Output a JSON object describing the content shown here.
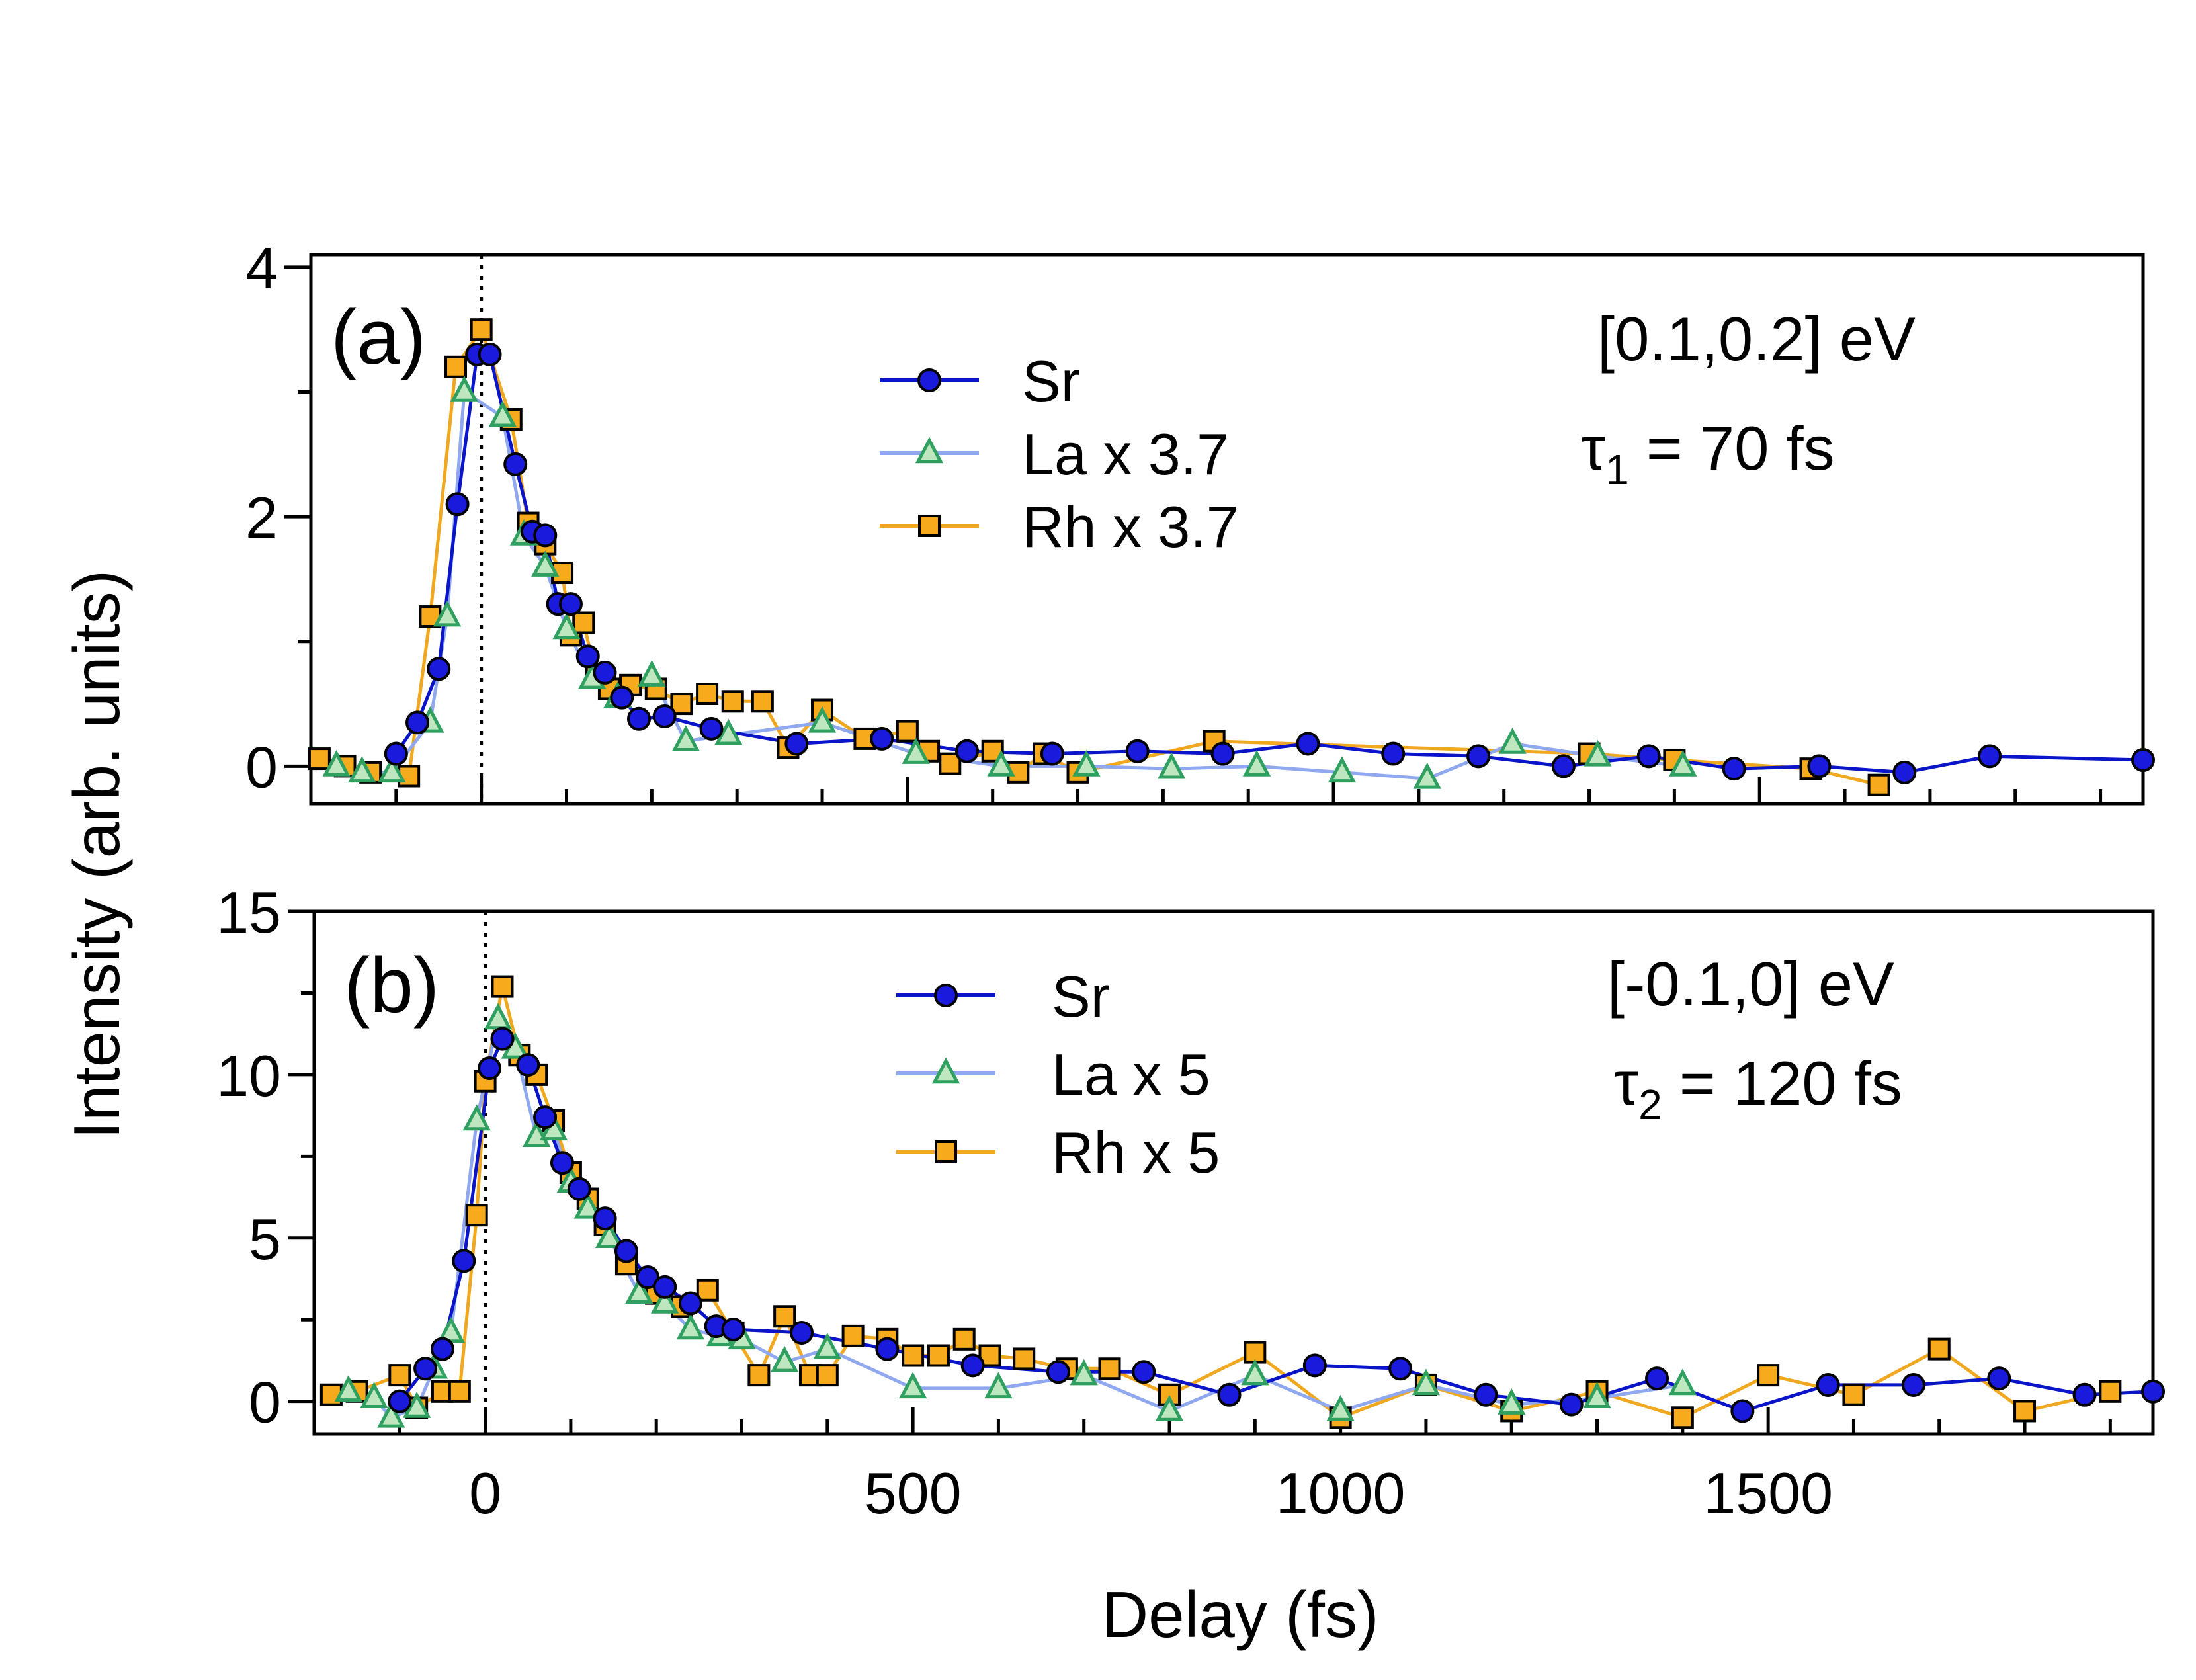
{
  "figure": {
    "ylabel": "Intensity (arb. units)",
    "xlabel": "Delay (fs)"
  },
  "colors": {
    "sr_line": "#0a14c8",
    "sr_marker": "#1a1adc",
    "la_line": "#8fa8f0",
    "la_marker": "#30a060",
    "rh_line": "#f0a820",
    "rh_marker": "#f7ab1c"
  },
  "chart_data": [
    {
      "type": "line",
      "panel_label": "(a)",
      "energy_label": "[0.1,0.2] eV",
      "tau_symbol": "τ",
      "tau_sub": "1",
      "tau_rest": " = 70 fs",
      "xlim": [
        -200,
        1950
      ],
      "ylim": [
        -0.3,
        4.1
      ],
      "yticks": [
        0,
        2,
        4
      ],
      "xticks": [
        0,
        500,
        1000,
        1500
      ],
      "show_xtick_labels": false,
      "legend_position": "top-center",
      "series": [
        {
          "name": "Sr",
          "marker": "circle",
          "x": [
            -100,
            -75,
            -50,
            -28,
            -5,
            10,
            40,
            60,
            75,
            90,
            105,
            125,
            145,
            165,
            185,
            215,
            270,
            370,
            470,
            570,
            670,
            770,
            870,
            970,
            1070,
            1170,
            1270,
            1370,
            1470,
            1570,
            1670,
            1770,
            1950
          ],
          "y": [
            0.1,
            0.35,
            0.78,
            2.1,
            3.3,
            3.3,
            2.42,
            1.88,
            1.85,
            1.3,
            1.3,
            0.88,
            0.75,
            0.55,
            0.38,
            0.4,
            0.3,
            0.18,
            0.22,
            0.12,
            0.1,
            0.12,
            0.1,
            0.18,
            0.1,
            0.08,
            0.0,
            0.08,
            -0.02,
            0.0,
            -0.05,
            0.08,
            0.05
          ]
        },
        {
          "name": "La x 3.7",
          "marker": "triangle",
          "x": [
            -170,
            -140,
            -105,
            -60,
            -40,
            -20,
            25,
            50,
            75,
            100,
            130,
            160,
            200,
            240,
            290,
            400,
            510,
            610,
            710,
            810,
            910,
            1010,
            1110,
            1210,
            1310,
            1410
          ],
          "y": [
            0.0,
            -0.05,
            -0.05,
            0.35,
            1.2,
            3.0,
            2.8,
            1.85,
            1.6,
            1.1,
            0.7,
            0.55,
            0.72,
            0.2,
            0.25,
            0.35,
            0.1,
            0.0,
            0.0,
            -0.02,
            0.0,
            -0.05,
            -0.1,
            0.18,
            0.08,
            0.0
          ]
        },
        {
          "name": "Rh x 3.7",
          "marker": "square",
          "x": [
            -190,
            -160,
            -130,
            -85,
            -60,
            -30,
            0,
            35,
            55,
            75,
            95,
            105,
            120,
            135,
            150,
            175,
            205,
            235,
            265,
            295,
            330,
            360,
            400,
            450,
            500,
            525,
            550,
            600,
            630,
            660,
            700,
            860,
            1300,
            1400,
            1560,
            1640
          ],
          "y": [
            0.06,
            0.0,
            -0.05,
            -0.08,
            1.2,
            3.2,
            3.5,
            2.78,
            1.95,
            1.78,
            1.55,
            1.05,
            1.15,
            0.72,
            0.62,
            0.65,
            0.62,
            0.5,
            0.58,
            0.52,
            0.52,
            0.15,
            0.45,
            0.22,
            0.28,
            0.12,
            0.02,
            0.12,
            -0.05,
            0.1,
            -0.05,
            0.2,
            0.1,
            0.05,
            -0.02,
            -0.15
          ]
        }
      ]
    },
    {
      "type": "line",
      "panel_label": "(b)",
      "energy_label": "[-0.1,0] eV",
      "tau_symbol": "τ",
      "tau_sub": "2",
      "tau_rest": " = 120 fs",
      "xlim": [
        -200,
        1950
      ],
      "ylim": [
        -1,
        15
      ],
      "yticks": [
        0,
        5,
        10,
        15
      ],
      "xticks": [
        0,
        500,
        1000,
        1500
      ],
      "show_xtick_labels": true,
      "legend_position": "top-center",
      "series": [
        {
          "name": "Sr",
          "marker": "circle",
          "x": [
            -100,
            -70,
            -50,
            -25,
            5,
            20,
            50,
            70,
            90,
            110,
            140,
            165,
            190,
            210,
            240,
            270,
            290,
            370,
            470,
            570,
            670,
            770,
            870,
            970,
            1070,
            1170,
            1270,
            1370,
            1470,
            1570,
            1670,
            1770,
            1870,
            1950
          ],
          "y": [
            0.0,
            1.0,
            1.6,
            4.3,
            10.2,
            11.1,
            10.3,
            8.7,
            7.3,
            6.5,
            5.6,
            4.6,
            3.8,
            3.5,
            3.0,
            2.3,
            2.2,
            2.1,
            1.6,
            1.1,
            0.9,
            0.9,
            0.2,
            1.1,
            1.0,
            0.2,
            -0.1,
            0.7,
            -0.3,
            0.5,
            0.5,
            0.7,
            0.2,
            0.3
          ]
        },
        {
          "name": "La x 5",
          "marker": "triangle",
          "x": [
            -160,
            -130,
            -110,
            -80,
            -60,
            -40,
            -10,
            15,
            35,
            60,
            80,
            100,
            120,
            145,
            180,
            210,
            240,
            275,
            300,
            350,
            400,
            500,
            600,
            700,
            800,
            900,
            1000,
            1100,
            1200,
            1300,
            1400
          ],
          "y": [
            0.3,
            0.1,
            -0.5,
            -0.2,
            1.0,
            2.1,
            8.6,
            11.7,
            10.8,
            8.1,
            8.3,
            6.7,
            5.9,
            5.0,
            3.3,
            3.0,
            2.2,
            2.0,
            1.9,
            1.2,
            1.6,
            0.4,
            0.4,
            0.8,
            -0.3,
            0.8,
            -0.3,
            0.5,
            -0.1,
            0.1,
            0.5
          ]
        },
        {
          "name": "Rh x 5",
          "marker": "square",
          "x": [
            -180,
            -150,
            -100,
            -80,
            -50,
            -30,
            -10,
            0,
            20,
            40,
            60,
            80,
            100,
            120,
            140,
            165,
            200,
            230,
            260,
            290,
            320,
            350,
            380,
            400,
            430,
            470,
            500,
            530,
            560,
            590,
            630,
            680,
            730,
            800,
            900,
            1000,
            1100,
            1200,
            1300,
            1400,
            1500,
            1600,
            1700,
            1800,
            1900
          ],
          "y": [
            0.2,
            0.3,
            0.8,
            -0.2,
            0.3,
            0.3,
            5.7,
            9.8,
            12.7,
            10.6,
            10.0,
            8.6,
            7.0,
            6.2,
            5.4,
            4.2,
            3.3,
            2.9,
            3.4,
            2.1,
            0.8,
            2.6,
            0.8,
            0.8,
            2.0,
            1.9,
            1.4,
            1.4,
            1.9,
            1.4,
            1.3,
            1.0,
            1.0,
            0.2,
            1.5,
            -0.5,
            0.5,
            -0.3,
            0.3,
            -0.5,
            0.8,
            0.2,
            1.6,
            -0.3,
            0.3
          ]
        }
      ]
    }
  ]
}
